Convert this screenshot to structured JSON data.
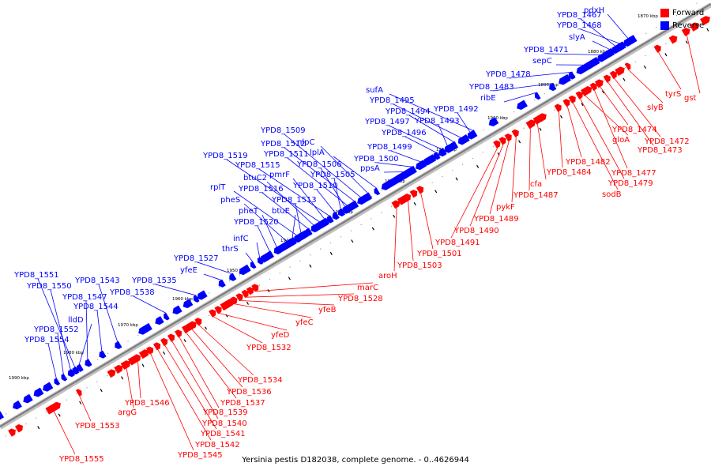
{
  "caption": "Yersinia pestis D182038, complete genome. - 0..4626944",
  "legend": [
    {
      "label": "Forward",
      "color": "#ff0000"
    },
    {
      "label": "Reverse",
      "color": "#0000ff"
    }
  ],
  "colors": {
    "forward": "#ff0000",
    "reverse": "#0000ff",
    "axis": "#808080",
    "tick": "#000000"
  },
  "axis": {
    "start_kbp": 1870,
    "end_kbp": 2000,
    "unit": "kbp"
  },
  "kbp_ticks": [
    {
      "label": "1870 kbp",
      "kbp": 1870
    },
    {
      "label": "1880 kbp",
      "kbp": 1880
    },
    {
      "label": "1890 kbp",
      "kbp": 1890
    },
    {
      "label": "1900 kbp",
      "kbp": 1900
    },
    {
      "label": "1910 kbp",
      "kbp": 1910
    },
    {
      "label": "1920 kbp",
      "kbp": 1920
    },
    {
      "label": "1930 kbp",
      "kbp": 1930
    },
    {
      "label": "1940 kbp",
      "kbp": 1940
    },
    {
      "label": "1950 kbp",
      "kbp": 1950
    },
    {
      "label": "1960 kbp",
      "kbp": 1960
    },
    {
      "label": "1970 kbp",
      "kbp": 1970
    },
    {
      "label": "1980 kbp",
      "kbp": 1980
    },
    {
      "label": "1990 kbp",
      "kbp": 1990
    }
  ],
  "reverse_genes": [
    "YPD8_1467",
    "pdxH",
    "YPD8_1468",
    "slyA",
    "YPD8_1471",
    "sepC",
    "YPD8_1478",
    "YPD8_1483",
    "ribE",
    "sufA",
    "YPD8_1495",
    "YPD8_1494",
    "YPD8_1492",
    "YPD8_1497",
    "YPD8_1493",
    "YPD8_1496",
    "YPD8_1509",
    "YPD8_1512",
    "nlpC",
    "YPD8_1511",
    "lplA",
    "YPD8_1519",
    "YPD8_1515",
    "YPD8_1506",
    "btuC2",
    "pmrF",
    "YPD8_1505",
    "YPD8_1499",
    "YPD8_1500",
    "ppsA",
    "rplT",
    "YPD8_1516",
    "YPD8_1510",
    "pheS",
    "YPD8_1513",
    "pheT",
    "btuE",
    "YPD8_1520",
    "infC",
    "thrS",
    "YPD8_1527",
    "yfeE",
    "YPD8_1535",
    "YPD8_1538",
    "YPD8_1543",
    "YPD8_1544",
    "YPD8_1551",
    "YPD8_1550",
    "YPD8_1547",
    "lldD",
    "YPD8_1552",
    "YPD8_1554"
  ],
  "forward_genes": [
    "gst",
    "tyrS",
    "slyB",
    "YPD8_1474",
    "YPD8_1472",
    "YPD8_1473",
    "gloA",
    "YPD8_1482",
    "YPD8_1477",
    "YPD8_1484",
    "YPD8_1479",
    "sodB",
    "cfa",
    "YPD8_1487",
    "pykF",
    "YPD8_1489",
    "YPD8_1490",
    "YPD8_1491",
    "YPD8_1501",
    "YPD8_1503",
    "aroH",
    "marC",
    "YPD8_1528",
    "yfeB",
    "yfeC",
    "yfeD",
    "YPD8_1532",
    "YPD8_1534",
    "YPD8_1536",
    "YPD8_1537",
    "YPD8_1539",
    "YPD8_1540",
    "YPD8_1541",
    "YPD8_1542",
    "YPD8_1545",
    "argG",
    "YPD8_1546",
    "YPD8_1553",
    "YPD8_1555"
  ]
}
